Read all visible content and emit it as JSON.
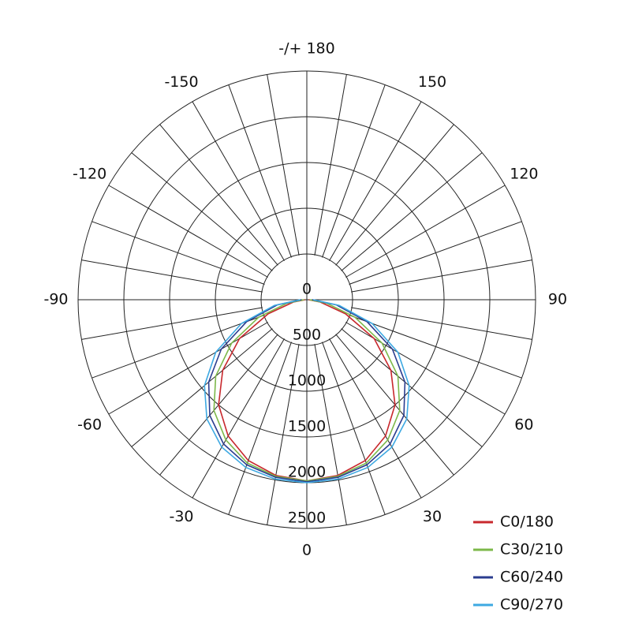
{
  "chart_data": {
    "type": "polar",
    "x": [
      -90,
      -80,
      -70,
      -60,
      -50,
      -40,
      -30,
      -20,
      -10,
      0,
      10,
      20,
      30,
      40,
      50,
      60,
      70,
      80,
      90
    ],
    "series": [
      {
        "name": "C0/180",
        "color": "#c8282d",
        "values": [
          20,
          150,
          450,
          850,
          1200,
          1500,
          1720,
          1870,
          1950,
          1980,
          1950,
          1870,
          1720,
          1500,
          1200,
          850,
          450,
          150,
          20
        ]
      },
      {
        "name": "C30/210",
        "color": "#7cb84a",
        "values": [
          30,
          220,
          560,
          950,
          1300,
          1580,
          1770,
          1900,
          1960,
          1980,
          1960,
          1900,
          1770,
          1580,
          1300,
          950,
          560,
          220,
          30
        ]
      },
      {
        "name": "C60/240",
        "color": "#2b3d8f",
        "values": [
          60,
          330,
          700,
          1080,
          1400,
          1650,
          1820,
          1920,
          1970,
          1990,
          1970,
          1920,
          1820,
          1650,
          1400,
          1080,
          700,
          330,
          60
        ]
      },
      {
        "name": "C90/270",
        "color": "#3ea9e2",
        "values": [
          70,
          360,
          760,
          1150,
          1460,
          1700,
          1860,
          1950,
          1990,
          2000,
          1990,
          1950,
          1860,
          1700,
          1460,
          1150,
          760,
          360,
          70
        ]
      }
    ],
    "rlim": [
      0,
      2500
    ],
    "rticks": [
      0,
      500,
      1000,
      1500,
      2000,
      2500
    ],
    "xticks": [
      0,
      30,
      60,
      90,
      120,
      150,
      {
        "value": 180,
        "label": "-/+ 180"
      },
      -150,
      -120,
      -90,
      -60,
      -30
    ],
    "grid": true,
    "legend": "bottom right"
  }
}
